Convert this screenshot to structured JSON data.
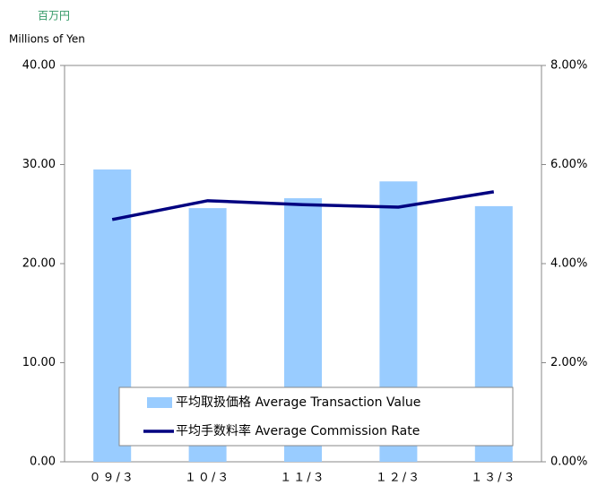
{
  "chart_data": {
    "type": "bar",
    "unit_label_ja": "百万円",
    "unit_label_en": "Millions of Yen",
    "categories": [
      "０９/３",
      "１０/３",
      "１１/３",
      "１２/３",
      "１３/３"
    ],
    "series": [
      {
        "name": "平均取扱価格 Average Transaction Value",
        "type": "bar",
        "color": "#99ccff",
        "values": [
          29.5,
          25.6,
          26.6,
          28.3,
          25.8
        ]
      },
      {
        "name": "平均手数料率 Average Commission Rate",
        "type": "line",
        "axis": "y2",
        "color": "#000080",
        "values": [
          4.89,
          5.27,
          5.19,
          5.14,
          5.45
        ]
      }
    ],
    "ylim": [
      0,
      40
    ],
    "yticks": [
      {
        "value": 0,
        "label": "0.00"
      },
      {
        "value": 10,
        "label": "10.00"
      },
      {
        "value": 20,
        "label": "20.00"
      },
      {
        "value": 30,
        "label": "30.00"
      },
      {
        "value": 40,
        "label": "40.00"
      }
    ],
    "y2lim": [
      0,
      8
    ],
    "y2ticks": [
      {
        "value": 0,
        "label": "0.00%"
      },
      {
        "value": 2,
        "label": "2.00%"
      },
      {
        "value": 4,
        "label": "4.00%"
      },
      {
        "value": 6,
        "label": "6.00%"
      },
      {
        "value": 8,
        "label": "8.00%"
      }
    ],
    "legend": "bottom"
  }
}
